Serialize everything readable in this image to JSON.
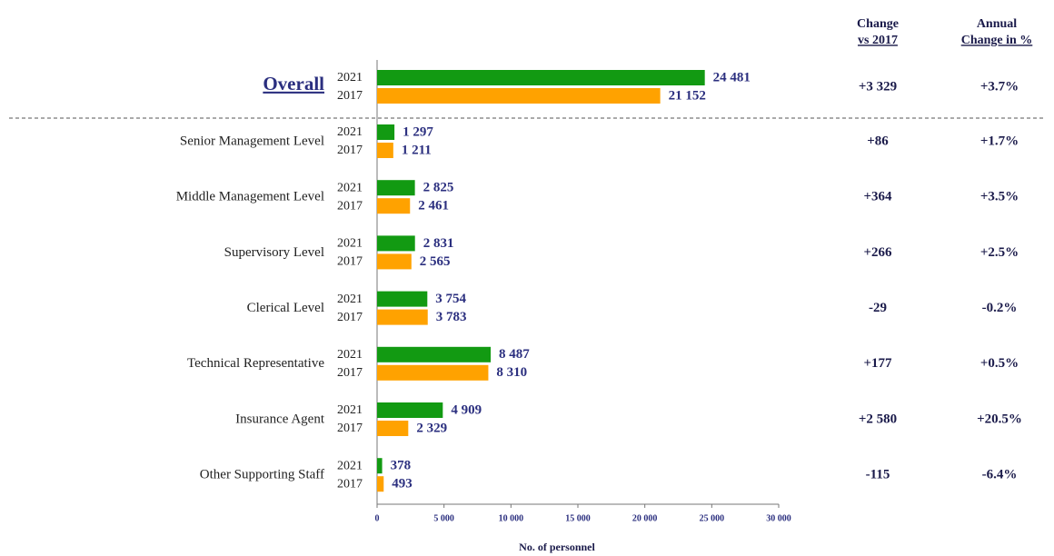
{
  "chart_data": {
    "type": "hbar",
    "categories": [
      "Overall",
      "Senior Management Level",
      "Middle Management Level",
      "Supervisory Level",
      "Clerical Level",
      "Technical Representative",
      "Insurance Agent",
      "Other Supporting Staff"
    ],
    "series": [
      {
        "name": "2021",
        "color": "#129a12",
        "values": [
          24481,
          1297,
          2825,
          2831,
          3754,
          8487,
          4909,
          378
        ],
        "value_labels": [
          "24 481",
          "1 297",
          "2 825",
          "2 831",
          "3 754",
          "8 487",
          "4 909",
          "378"
        ]
      },
      {
        "name": "2017",
        "color": "#ffa200",
        "values": [
          21152,
          1211,
          2461,
          2565,
          3783,
          8310,
          2329,
          493
        ],
        "value_labels": [
          "21 152",
          "1 211",
          "2 461",
          "2 565",
          "3 783",
          "8 310",
          "2 329",
          "493"
        ]
      }
    ],
    "xlim": [
      0,
      30000
    ],
    "xticks": [
      0,
      {
        "value": 5000,
        "label": "5 000"
      },
      {
        "value": 10000,
        "label": "10 000"
      },
      {
        "value": 15000,
        "label": "15 000"
      },
      {
        "value": 20000,
        "label": "20 000"
      },
      {
        "value": 25000,
        "label": "25 000"
      },
      {
        "value": 30000,
        "label": "30 000"
      }
    ],
    "xlabel": "No. of personnel",
    "columns": [
      {
        "header": [
          "Change",
          "vs 2017"
        ],
        "values": [
          3329,
          86,
          364,
          266,
          -29,
          177,
          2580,
          -115
        ],
        "value_labels": [
          "+3 329",
          "+86",
          "+364",
          "+266",
          "-29",
          "+177",
          "+2 580",
          "-115"
        ]
      },
      {
        "header": [
          "Annual",
          "Change in %"
        ],
        "values": [
          3.7,
          1.7,
          3.5,
          2.5,
          -0.2,
          0.5,
          20.5,
          -6.4
        ],
        "value_labels": [
          "+3.7%",
          "+1.7%",
          "+3.5%",
          "+2.5%",
          "-0.2%",
          "+0.5%",
          "+20.5%",
          "-6.4%"
        ]
      }
    ]
  }
}
